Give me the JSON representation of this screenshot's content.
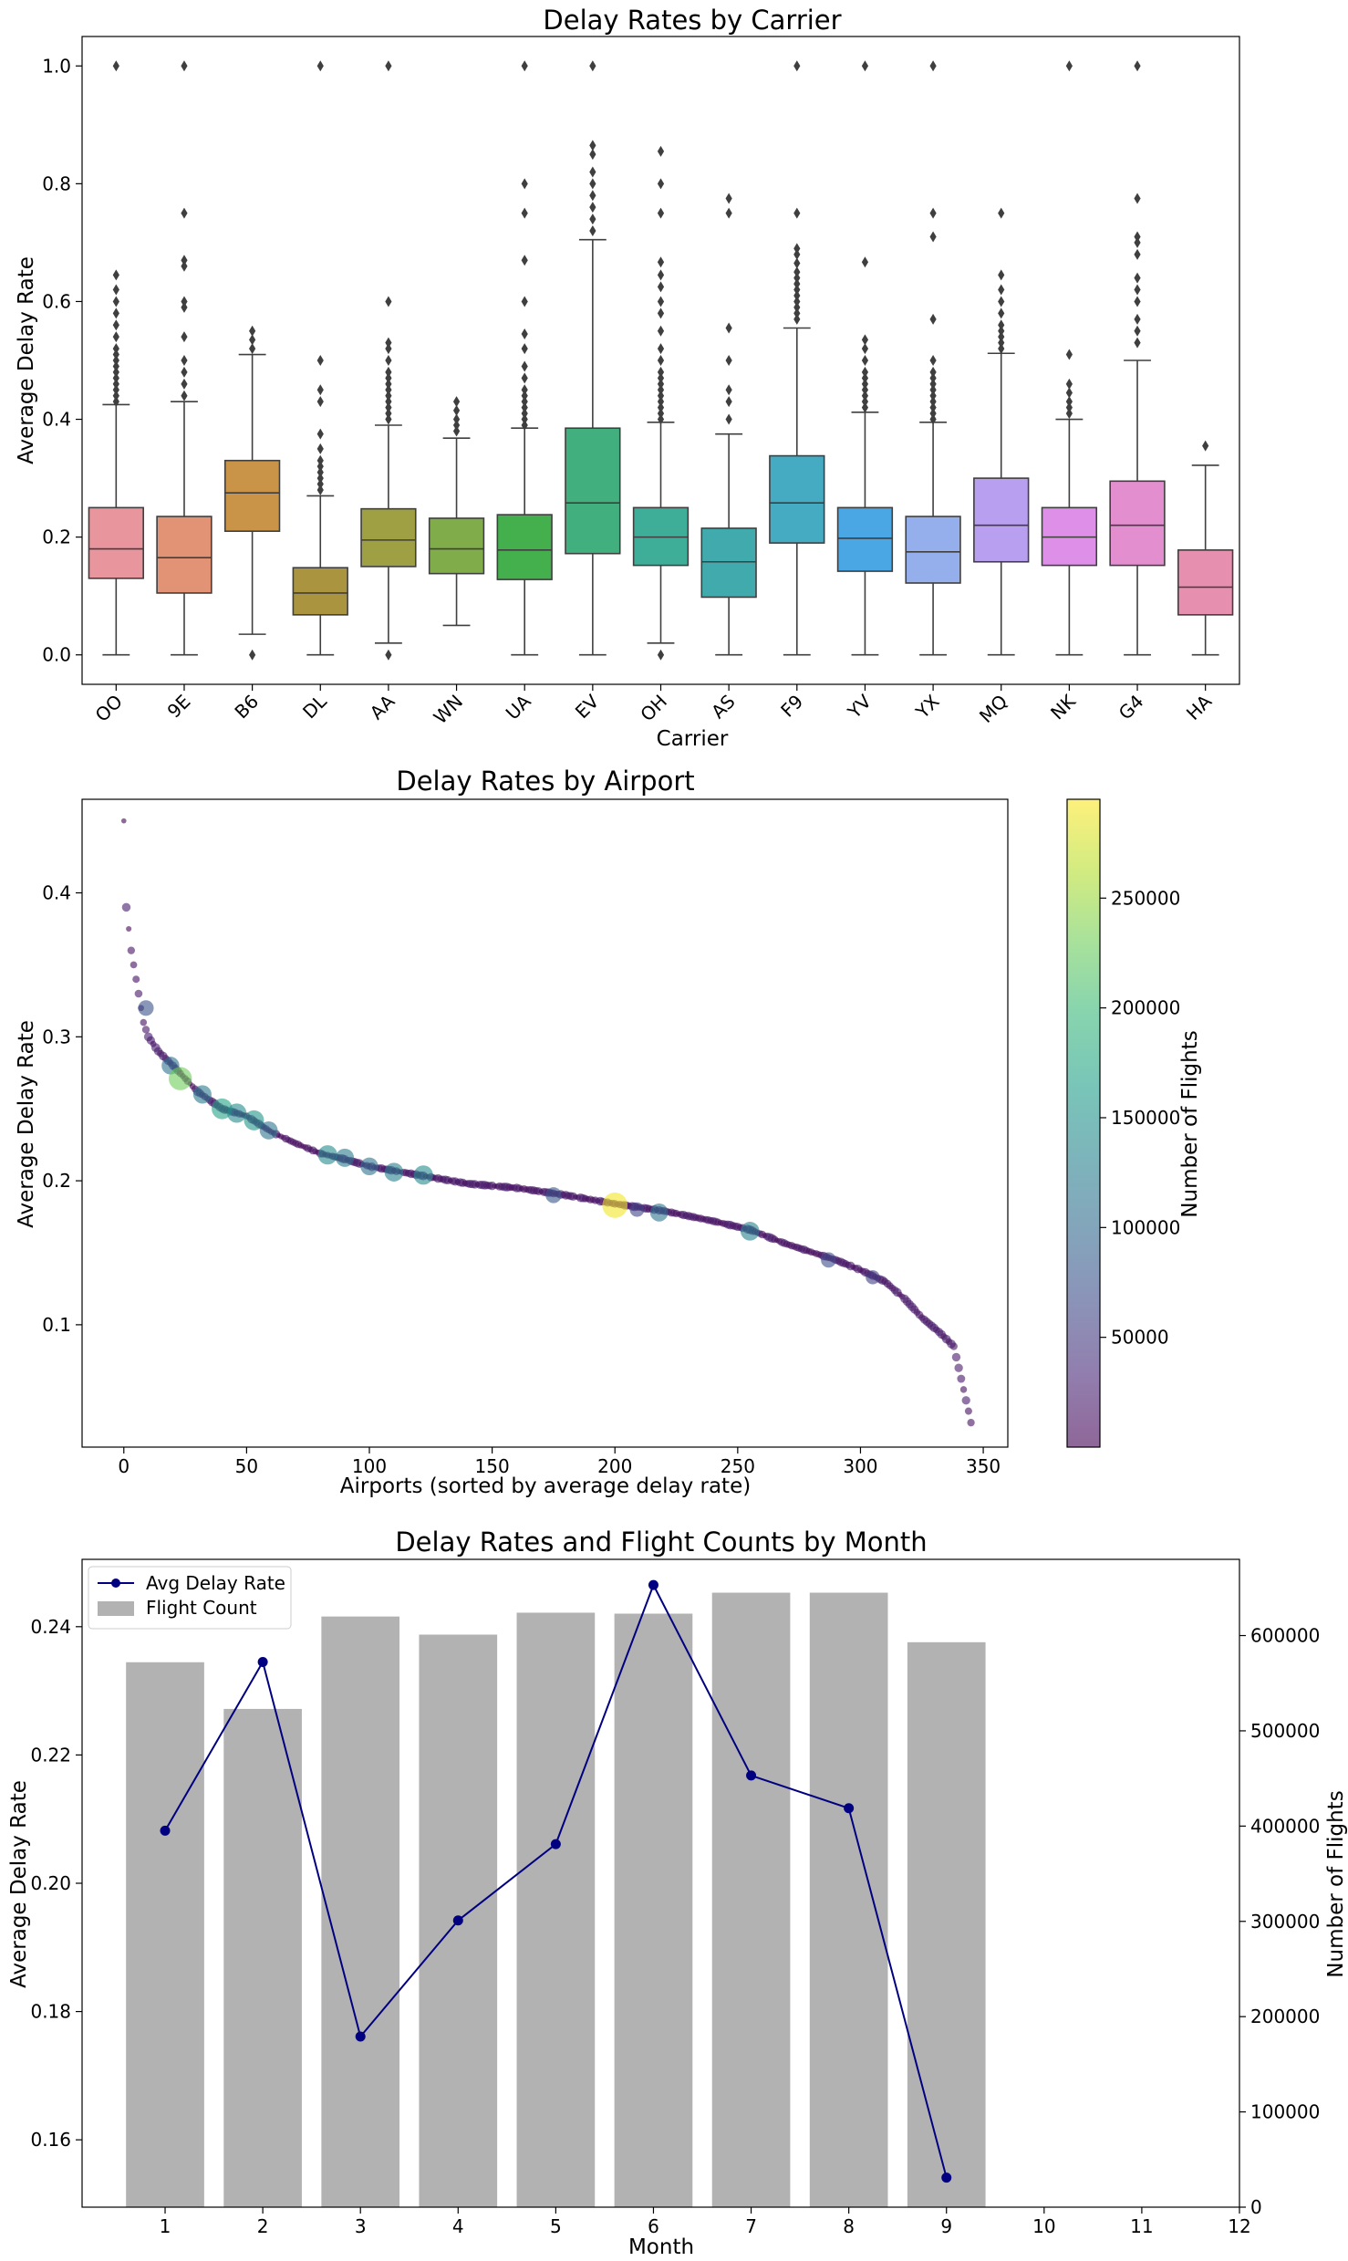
{
  "chart_data": [
    {
      "type": "box",
      "title": "Delay Rates by Carrier",
      "xlabel": "Carrier",
      "ylabel": "Average Delay Rate",
      "ylim": [
        -0.05,
        1.05
      ],
      "yticks": [
        "0.0",
        "0.2",
        "0.4",
        "0.6",
        "0.8",
        "1.0"
      ],
      "grid": false,
      "categories": [
        "OO",
        "9E",
        "B6",
        "DL",
        "AA",
        "WN",
        "UA",
        "EV",
        "OH",
        "AS",
        "F9",
        "YV",
        "YX",
        "MQ",
        "NK",
        "G4",
        "HA"
      ],
      "colors": [
        "#e8959e",
        "#e29275",
        "#c99447",
        "#aa9440",
        "#9fa043",
        "#80ad4a",
        "#43b04d",
        "#42b07e",
        "#3fae99",
        "#41aaac",
        "#44abc3",
        "#4aa7e3",
        "#95aeec",
        "#b99ff0",
        "#de90e8",
        "#e38fcf",
        "#e68fae"
      ],
      "boxes": [
        {
          "whislo": 0.0,
          "q1": 0.13,
          "med": 0.18,
          "q3": 0.25,
          "whishi": 0.425,
          "fliers": [
            0.43,
            0.44,
            0.45,
            0.46,
            0.47,
            0.48,
            0.49,
            0.5,
            0.51,
            0.52,
            0.54,
            0.56,
            0.58,
            0.6,
            0.62,
            0.645,
            1.0
          ]
        },
        {
          "whislo": 0.0,
          "q1": 0.105,
          "med": 0.165,
          "q3": 0.235,
          "whishi": 0.43,
          "fliers": [
            0.44,
            0.46,
            0.48,
            0.5,
            0.54,
            0.59,
            0.6,
            0.66,
            0.67,
            0.75,
            1.0
          ]
        },
        {
          "whislo": 0.035,
          "q1": 0.21,
          "med": 0.275,
          "q3": 0.33,
          "whishi": 0.51,
          "fliers": [
            0.0,
            0.52,
            0.535,
            0.55
          ]
        },
        {
          "whislo": 0.0,
          "q1": 0.068,
          "med": 0.105,
          "q3": 0.148,
          "whishi": 0.27,
          "fliers": [
            0.28,
            0.29,
            0.3,
            0.31,
            0.32,
            0.33,
            0.35,
            0.375,
            0.43,
            0.45,
            0.5,
            1.0
          ]
        },
        {
          "whislo": 0.02,
          "q1": 0.15,
          "med": 0.195,
          "q3": 0.248,
          "whishi": 0.39,
          "fliers": [
            0.0,
            0.4,
            0.41,
            0.42,
            0.43,
            0.44,
            0.45,
            0.46,
            0.47,
            0.48,
            0.5,
            0.52,
            0.53,
            0.6,
            1.0
          ]
        },
        {
          "whislo": 0.05,
          "q1": 0.138,
          "med": 0.18,
          "q3": 0.232,
          "whishi": 0.368,
          "fliers": [
            0.38,
            0.39,
            0.4,
            0.415,
            0.43
          ]
        },
        {
          "whislo": 0.0,
          "q1": 0.128,
          "med": 0.178,
          "q3": 0.238,
          "whishi": 0.385,
          "fliers": [
            0.39,
            0.4,
            0.41,
            0.42,
            0.43,
            0.44,
            0.45,
            0.47,
            0.49,
            0.52,
            0.545,
            0.6,
            0.67,
            0.75,
            0.8,
            1.0
          ]
        },
        {
          "whislo": 0.0,
          "q1": 0.172,
          "med": 0.258,
          "q3": 0.385,
          "whishi": 0.705,
          "fliers": [
            0.72,
            0.74,
            0.76,
            0.78,
            0.8,
            0.82,
            0.85,
            0.865,
            1.0
          ]
        },
        {
          "whislo": 0.02,
          "q1": 0.152,
          "med": 0.2,
          "q3": 0.25,
          "whishi": 0.395,
          "fliers": [
            0.0,
            0.4,
            0.41,
            0.42,
            0.43,
            0.44,
            0.45,
            0.46,
            0.47,
            0.48,
            0.5,
            0.52,
            0.55,
            0.58,
            0.6,
            0.625,
            0.645,
            0.667,
            0.75,
            0.8,
            0.855
          ]
        },
        {
          "whislo": 0.0,
          "q1": 0.098,
          "med": 0.158,
          "q3": 0.215,
          "whishi": 0.375,
          "fliers": [
            0.4,
            0.43,
            0.45,
            0.5,
            0.555,
            0.75,
            0.775
          ]
        },
        {
          "whislo": 0.0,
          "q1": 0.19,
          "med": 0.258,
          "q3": 0.338,
          "whishi": 0.555,
          "fliers": [
            0.57,
            0.58,
            0.59,
            0.6,
            0.61,
            0.62,
            0.63,
            0.64,
            0.65,
            0.665,
            0.68,
            0.69,
            0.75,
            1.0
          ]
        },
        {
          "whislo": 0.0,
          "q1": 0.142,
          "med": 0.198,
          "q3": 0.25,
          "whishi": 0.412,
          "fliers": [
            0.42,
            0.43,
            0.44,
            0.45,
            0.46,
            0.47,
            0.48,
            0.5,
            0.52,
            0.535,
            0.667,
            1.0
          ]
        },
        {
          "whislo": 0.0,
          "q1": 0.122,
          "med": 0.175,
          "q3": 0.235,
          "whishi": 0.395,
          "fliers": [
            0.4,
            0.41,
            0.42,
            0.43,
            0.44,
            0.45,
            0.46,
            0.47,
            0.48,
            0.5,
            0.57,
            0.71,
            0.75,
            1.0
          ]
        },
        {
          "whislo": 0.0,
          "q1": 0.158,
          "med": 0.22,
          "q3": 0.3,
          "whishi": 0.512,
          "fliers": [
            0.52,
            0.53,
            0.54,
            0.55,
            0.56,
            0.58,
            0.6,
            0.62,
            0.645,
            0.75
          ]
        },
        {
          "whislo": 0.0,
          "q1": 0.152,
          "med": 0.2,
          "q3": 0.25,
          "whishi": 0.4,
          "fliers": [
            0.41,
            0.42,
            0.43,
            0.445,
            0.46,
            0.51,
            1.0
          ]
        },
        {
          "whislo": 0.0,
          "q1": 0.152,
          "med": 0.22,
          "q3": 0.295,
          "whishi": 0.5,
          "fliers": [
            0.53,
            0.55,
            0.57,
            0.6,
            0.62,
            0.64,
            0.68,
            0.7,
            0.71,
            0.775,
            1.0
          ]
        },
        {
          "whislo": 0.0,
          "q1": 0.068,
          "med": 0.115,
          "q3": 0.178,
          "whishi": 0.322,
          "fliers": [
            0.355
          ]
        }
      ]
    },
    {
      "type": "scatter",
      "title": "Delay Rates by Airport",
      "xlabel": "Airports (sorted by average delay rate)",
      "ylabel": "Average Delay Rate",
      "xlim": [
        -17,
        360
      ],
      "ylim": [
        0.015,
        0.465
      ],
      "xticks": [
        "0",
        "50",
        "100",
        "150",
        "200",
        "250",
        "300",
        "350"
      ],
      "yticks": [
        "0.1",
        "0.2",
        "0.3",
        "0.4"
      ],
      "colorbar": {
        "label": "Number of Flights",
        "min": 0,
        "max": 295000,
        "ticks": [
          "50000",
          "100000",
          "150000",
          "200000",
          "250000"
        ],
        "colormap": "viridis"
      },
      "highlight_points": [
        {
          "x": 9,
          "y": 0.32,
          "flights": 75000
        },
        {
          "x": 19,
          "y": 0.28,
          "flights": 110000
        },
        {
          "x": 23,
          "y": 0.271,
          "flights": 230000
        },
        {
          "x": 32,
          "y": 0.26,
          "flights": 120000
        },
        {
          "x": 40,
          "y": 0.25,
          "flights": 170000
        },
        {
          "x": 46,
          "y": 0.247,
          "flights": 140000
        },
        {
          "x": 53,
          "y": 0.242,
          "flights": 155000
        },
        {
          "x": 59,
          "y": 0.235,
          "flights": 115000
        },
        {
          "x": 83,
          "y": 0.218,
          "flights": 140000
        },
        {
          "x": 90,
          "y": 0.216,
          "flights": 120000
        },
        {
          "x": 100,
          "y": 0.21,
          "flights": 110000
        },
        {
          "x": 110,
          "y": 0.206,
          "flights": 130000
        },
        {
          "x": 122,
          "y": 0.204,
          "flights": 140000
        },
        {
          "x": 175,
          "y": 0.19,
          "flights": 80000
        },
        {
          "x": 200,
          "y": 0.183,
          "flights": 290000
        },
        {
          "x": 209,
          "y": 0.18,
          "flights": 60000
        },
        {
          "x": 218,
          "y": 0.178,
          "flights": 115000
        },
        {
          "x": 255,
          "y": 0.165,
          "flights": 130000
        },
        {
          "x": 287,
          "y": 0.145,
          "flights": 70000
        },
        {
          "x": 305,
          "y": 0.133,
          "flights": 55000
        }
      ]
    },
    {
      "type": "bar+line",
      "title": "Delay Rates and Flight Counts by Month",
      "xlabel": "Month",
      "ylabel": "Average Delay Rate",
      "y2label": "Number of Flights",
      "categories": [
        1,
        2,
        3,
        4,
        5,
        6,
        7,
        8,
        9
      ],
      "xticks": [
        "1",
        "2",
        "3",
        "4",
        "5",
        "6",
        "7",
        "8",
        "9",
        "10",
        "11",
        "12"
      ],
      "xlim": [
        0.15,
        12
      ],
      "ylim": [
        0.1495,
        0.2505
      ],
      "yticks": [
        "0.16",
        "0.18",
        "0.20",
        "0.22",
        "0.24"
      ],
      "y2lim": [
        0,
        680000
      ],
      "y2ticks": [
        "0",
        "100000",
        "200000",
        "300000",
        "400000",
        "500000",
        "600000"
      ],
      "series": [
        {
          "name": "Avg Delay Rate",
          "type": "line",
          "color": "#000080",
          "values": [
            0.2082,
            0.2345,
            0.1761,
            0.1942,
            0.2061,
            0.2465,
            0.2168,
            0.2117,
            0.1541
          ]
        },
        {
          "name": "Flight Count",
          "type": "bar",
          "color": "#b2b2b2",
          "values": [
            572000,
            523000,
            620000,
            601000,
            624000,
            623000,
            645000,
            645000,
            593000
          ]
        }
      ],
      "legend_position": "upper left"
    }
  ]
}
